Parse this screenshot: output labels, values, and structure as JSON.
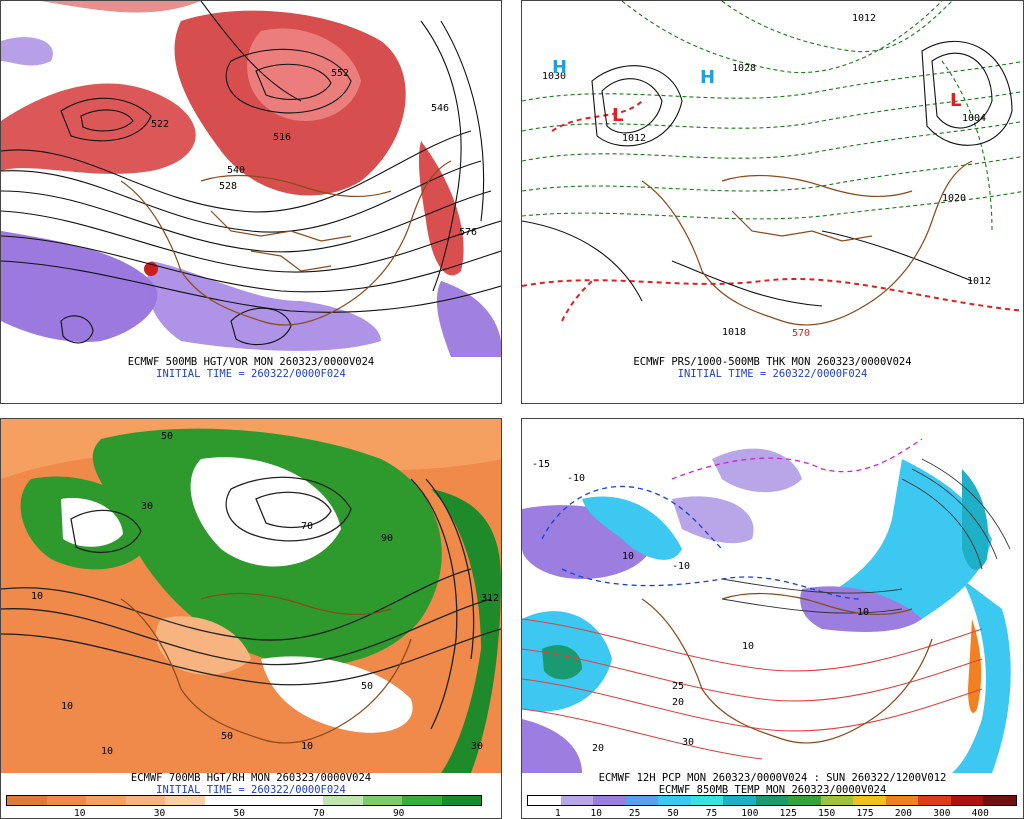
{
  "panels": [
    {
      "id": "p1",
      "caption_line1": "ECMWF 500MB HGT/VOR MON 260323/0000V024",
      "caption_line2": "INITIAL TIME = 260322/0000F024"
    },
    {
      "id": "p2",
      "caption_line1": "ECMWF PRS/1000-500MB THK MON 260323/0000V024",
      "caption_line2": "INITIAL TIME = 260322/0000F024"
    },
    {
      "id": "p3",
      "caption_line1": "ECMWF 700MB HGT/RH MON 260323/0000V024",
      "caption_line2": "INITIAL TIME = 260322/0000F024",
      "colorbar": {
        "colors": [
          "#e07a3a",
          "#f08a4a",
          "#f5a060",
          "#f7b480",
          "#fbd0a8",
          "#ffffff",
          "#ffffff",
          "#ffffff",
          "#c0e6b0",
          "#7ccd6a",
          "#3daa3a",
          "#1a8a2a"
        ],
        "ticks": [
          "10",
          "30",
          "50",
          "70",
          "90"
        ]
      }
    },
    {
      "id": "p4",
      "caption_line1": "ECMWF 12H PCP MON 260323/0000V024 : SUN 260322/1200V012",
      "caption_line2": "ECMWF 850MB TEMP MON 260323/0000V024",
      "colorbar": {
        "colors": [
          "#ffffff",
          "#b9a6e8",
          "#9b7ee0",
          "#5aa0f0",
          "#3cc8f0",
          "#38e0e0",
          "#1fb0c8",
          "#1a9a70",
          "#3aa03a",
          "#a0c040",
          "#f0c020",
          "#f08020",
          "#e03a1a",
          "#b01010",
          "#701010"
        ],
        "ticks": [
          "1",
          "10",
          "25",
          "50",
          "75",
          "100",
          "125",
          "150",
          "175",
          "200",
          "300",
          "400"
        ]
      }
    }
  ],
  "map_labels": {
    "p1": [
      "522",
      "552",
      "516",
      "540",
      "576",
      "528",
      "546"
    ],
    "p2": [
      "1012",
      "1030",
      "1028",
      "1004",
      "1012",
      "1018",
      "1020",
      "1012",
      "570",
      "L",
      "L",
      "H",
      "H"
    ],
    "p3": [
      "50",
      "10",
      "30",
      "90",
      "70",
      "312",
      "10",
      "50",
      "10",
      "30",
      "10",
      "50"
    ],
    "p4": [
      "-10",
      "10",
      "-15",
      "10",
      "20",
      "25",
      "30",
      "20",
      "10",
      "-10"
    ]
  }
}
